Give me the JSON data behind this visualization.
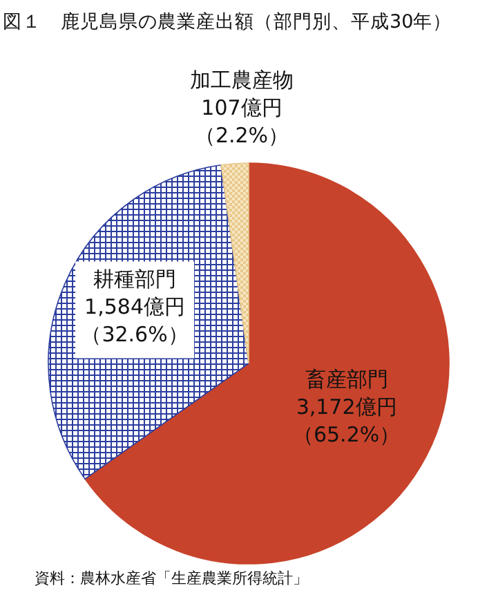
{
  "chart_data": {
    "type": "pie",
    "title": "図１　鹿児島県の農業産出額（部門別、平成30年）",
    "categories": [
      "畜産部門",
      "耕種部門",
      "加工農産物"
    ],
    "values": [
      3172,
      1584,
      107
    ],
    "value_labels": [
      "3,172億円（65.2%）",
      "1,584億円（32.6%）",
      "107億円（2.2%）"
    ],
    "colors": [
      "#c8432b",
      "#2b3d9e",
      "#e9c98c"
    ],
    "annotations": [
      "資料：農林水産省「生産農業所得統計」"
    ]
  }
}
